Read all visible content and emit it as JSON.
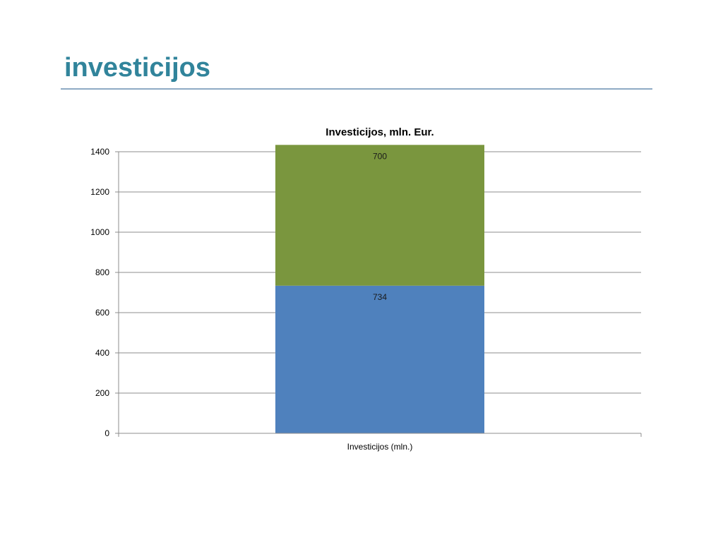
{
  "slide": {
    "title": "investicijos"
  },
  "chart_data": {
    "type": "bar",
    "stacked": true,
    "title": "Investicijos, mln. Eur.",
    "categories": [
      "Investicijos (mln.)"
    ],
    "series": [
      {
        "values": [
          734
        ],
        "color": "#4f81bd"
      },
      {
        "values": [
          700
        ],
        "color": "#7a963e"
      }
    ],
    "ylim": [
      0,
      1400
    ],
    "yticks": [
      0,
      200,
      400,
      600,
      800,
      1000,
      1200,
      1400
    ],
    "grid": true,
    "legend": "none"
  }
}
